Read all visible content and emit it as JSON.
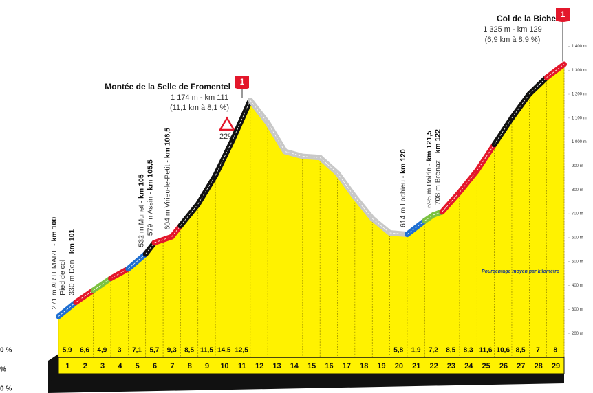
{
  "chart_data": {
    "type": "area",
    "x": [
      0,
      1,
      2,
      3,
      4,
      5,
      5.5,
      6.5,
      7,
      8,
      9,
      10,
      11,
      12,
      13,
      14,
      15,
      16,
      17,
      18,
      19,
      20,
      21,
      21.5,
      22,
      23,
      24,
      25,
      26,
      27,
      28,
      29
    ],
    "values": [
      271,
      330,
      380,
      430,
      470,
      532,
      579,
      604,
      650,
      740,
      860,
      1010,
      1174,
      1080,
      960,
      940,
      935,
      870,
      770,
      680,
      620,
      614,
      670,
      695,
      708,
      790,
      880,
      990,
      1100,
      1200,
      1270,
      1325
    ],
    "color": "#fff200",
    "xlim": [
      0,
      29
    ],
    "xticks": [
      1,
      2,
      3,
      4,
      5,
      6,
      7,
      8,
      9,
      10,
      11,
      12,
      13,
      14,
      15,
      16,
      17,
      18,
      19,
      20,
      21,
      22,
      23,
      24,
      25,
      26,
      27,
      28,
      29
    ],
    "ylim": [
      100,
      1450
    ],
    "yticks": [
      {
        "value": 200,
        "label": "200 m"
      },
      {
        "value": 300,
        "label": "300 m"
      },
      {
        "value": 400,
        "label": "400 m"
      },
      {
        "value": 500,
        "label": "500 m"
      },
      {
        "value": 600,
        "label": "600 m"
      },
      {
        "value": 700,
        "label": "700 m"
      },
      {
        "value": 800,
        "label": "800 m"
      },
      {
        "value": 900,
        "label": "900 m"
      },
      {
        "value": 1000,
        "label": "1 000 m"
      },
      {
        "value": 1100,
        "label": "1 100 m"
      },
      {
        "value": 1200,
        "label": "1 200 m"
      },
      {
        "value": 1300,
        "label": "1 300 m"
      },
      {
        "value": 1400,
        "label": "1 400 m"
      }
    ],
    "gradients": {
      "values": [
        5.9,
        6.6,
        4.9,
        3,
        7.1,
        5.7,
        9.3,
        8.5,
        11.5,
        14.5,
        12.5,
        null,
        null,
        null,
        null,
        null,
        null,
        null,
        null,
        5.8,
        1.9,
        7.2,
        8.5,
        8.3,
        11.6,
        10.6,
        8.5,
        7,
        8
      ],
      "value_labels": [
        "5,9",
        "6,6",
        "4,9",
        "3",
        "7,1",
        "5,7",
        "9,3",
        "8,5",
        "11,5",
        "14,5",
        "12,5",
        null,
        null,
        null,
        null,
        null,
        null,
        null,
        null,
        "5,8",
        "1,9",
        "7,2",
        "8,5",
        "8,3",
        "11,6",
        "10,6",
        "8,5",
        "7",
        "8"
      ],
      "segment_colors": [
        "#1f6fd1",
        "#e3172b",
        "#7cc242",
        "#e3172b",
        "#1f6fd1",
        "#111111",
        "#e3172b",
        "#111111",
        "#111111",
        "#111111",
        "#111111",
        "#c8c8c8",
        "#c8c8c8",
        "#c8c8c8",
        "#c8c8c8",
        "#c8c8c8",
        "#c8c8c8",
        "#c8c8c8",
        "#c8c8c8",
        "#c8c8c8",
        "#1f6fd1",
        "#7cc242",
        "#e3172b",
        "#e3172b",
        "#e3172b",
        "#111111",
        "#111111",
        "#111111",
        "#e3172b"
      ]
    },
    "note": "Pourcentage moyen par kilomètre",
    "places": [
      {
        "name": "271 m ARTEMARE - ",
        "km": "km 100"
      },
      {
        "name": "330 m Don - ",
        "km": "km 101",
        "extra": "Pied de col"
      },
      {
        "name": "532 m Munet - ",
        "km": "km 105"
      },
      {
        "name": "579 m Assin - ",
        "km": "km 105,5"
      },
      {
        "name": "604 m Virieu-le-Petit - ",
        "km": "km 106,5"
      },
      {
        "name": "614 m Lochieu - ",
        "km": "km 120"
      },
      {
        "name": "695 m Boirin - ",
        "km": "km 121,5"
      },
      {
        "name": "708 m Brénaz - ",
        "km": "km 122"
      }
    ],
    "summits": [
      {
        "name": "Montée de la Selle de Fromentel",
        "info": "1 174 m - km 111",
        "climb": "(11,1 km à 8,1 %)",
        "category": "1"
      },
      {
        "name": "Col de la Biche",
        "info": "1 325 m - km 129",
        "climb": "(6,9 km à 8,9 %)",
        "category": "1"
      }
    ],
    "warning": "22%",
    "legend_fragments": [
      "0 %",
      "%",
      "0 %"
    ]
  }
}
